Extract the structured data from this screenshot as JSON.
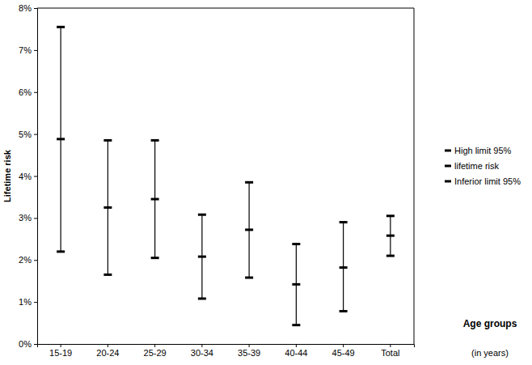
{
  "chart_data": {
    "type": "error_bar",
    "ylabel": "Lifetime risk",
    "xlabel": [
      "Age groups",
      "(in years)"
    ],
    "categories": [
      "15-19",
      "20-24",
      "25-29",
      "30-34",
      "35-39",
      "40-44",
      "45-49",
      "Total"
    ],
    "series": [
      {
        "name": "High limit 95%",
        "color": "#000000",
        "marker": "dash",
        "values": [
          7.55,
          4.85,
          4.85,
          3.08,
          3.85,
          2.38,
          2.9,
          3.05
        ]
      },
      {
        "name": "lifetime risk",
        "color": "#000000",
        "marker": "dash",
        "values": [
          4.88,
          3.25,
          3.45,
          2.08,
          2.72,
          1.42,
          1.82,
          2.58
        ]
      },
      {
        "name": "Inferior limit 95%",
        "color": "#000000",
        "marker": "dash",
        "values": [
          2.2,
          1.65,
          2.05,
          1.08,
          1.58,
          0.45,
          0.78,
          2.1
        ]
      }
    ],
    "ylim": [
      0,
      8
    ],
    "yticks": [
      {
        "value": 0,
        "label": "0%"
      },
      {
        "value": 1,
        "label": "1%"
      },
      {
        "value": 2,
        "label": "2%"
      },
      {
        "value": 3,
        "label": "3%"
      },
      {
        "value": 4,
        "label": "4%"
      },
      {
        "value": 5,
        "label": "5%"
      },
      {
        "value": 6,
        "label": "6%"
      },
      {
        "value": 7,
        "label": "7%"
      },
      {
        "value": 8,
        "label": "8%"
      }
    ],
    "grid": false,
    "legend": "right"
  }
}
